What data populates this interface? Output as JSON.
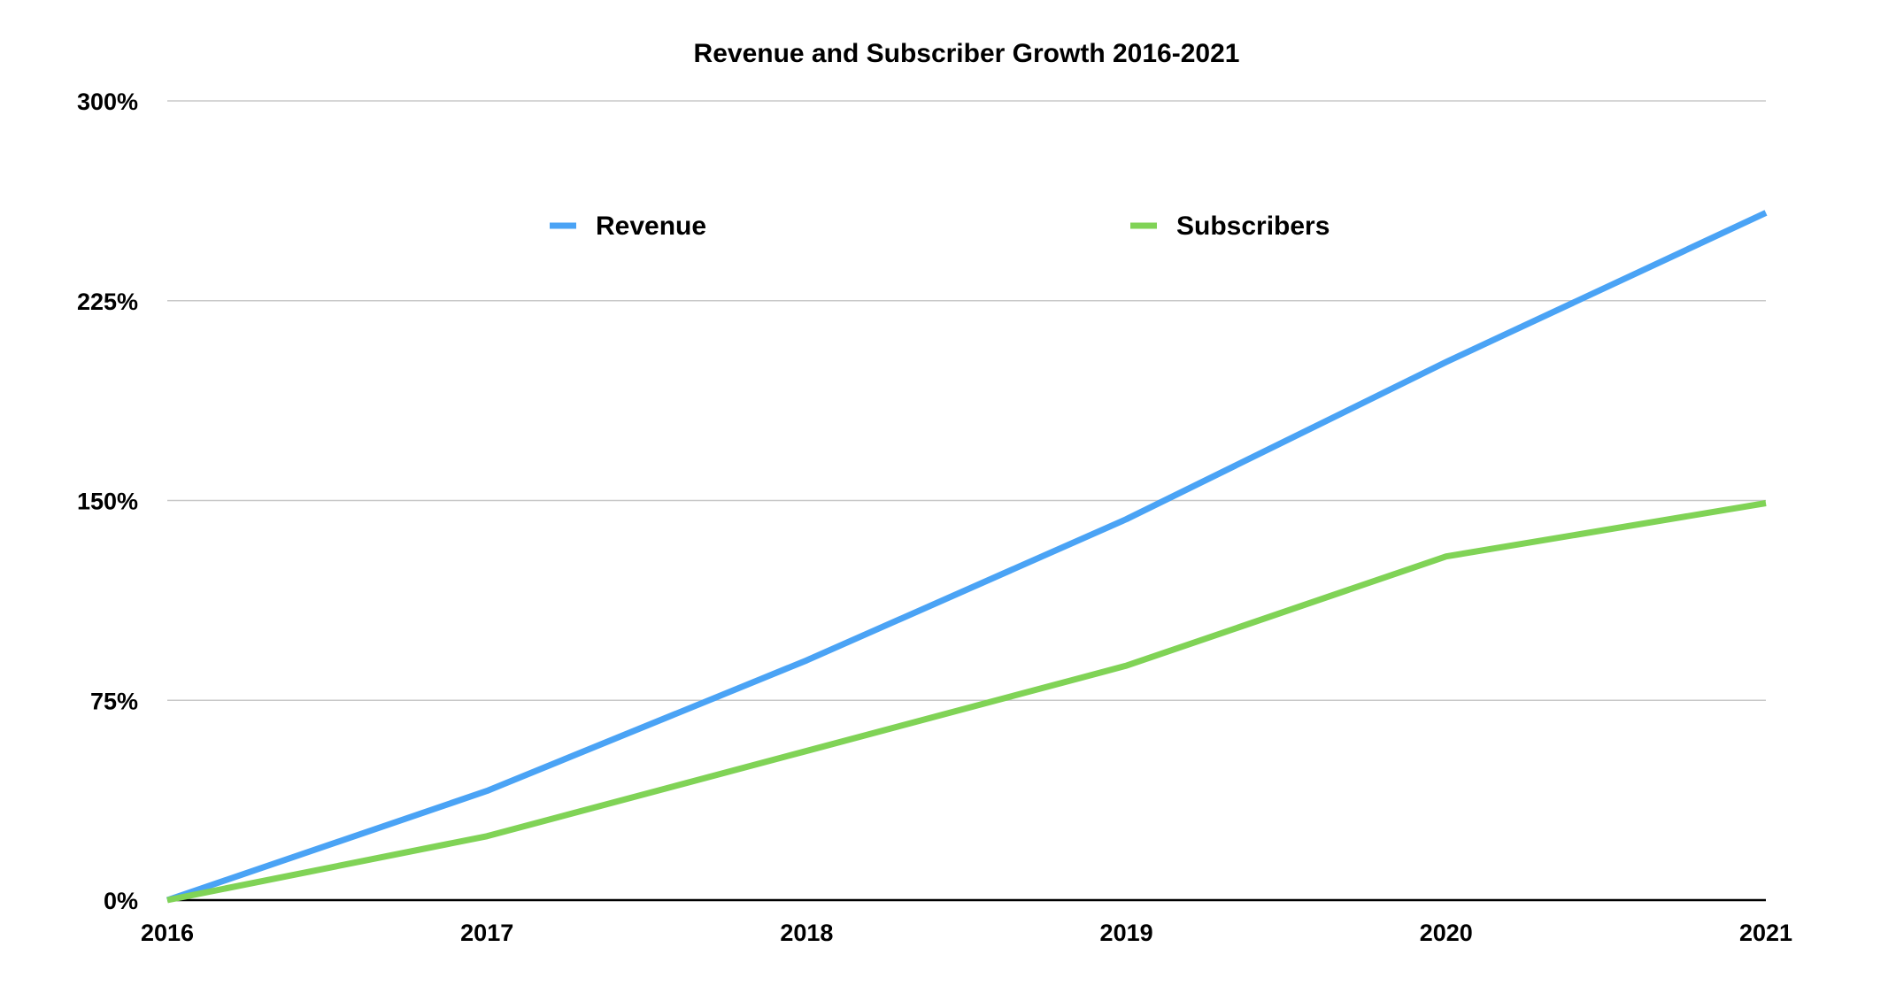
{
  "chart_data": {
    "type": "line",
    "title": "Revenue and Subscriber Growth 2016-2021",
    "xlabel": "",
    "ylabel": "",
    "categories": [
      "2016",
      "2017",
      "2018",
      "2019",
      "2020",
      "2021"
    ],
    "ylim": [
      0,
      300
    ],
    "yticks": [
      "0%",
      "75%",
      "150%",
      "225%",
      "300%"
    ],
    "ytick_values": [
      0,
      75,
      150,
      225,
      300
    ],
    "grid": true,
    "legend_position": "top",
    "series": [
      {
        "name": "Revenue",
        "color": "#4AA3F5",
        "values": [
          0,
          41,
          90,
          143,
          202,
          258
        ]
      },
      {
        "name": "Subscribers",
        "color": "#80D356",
        "values": [
          0,
          24,
          56,
          88,
          129,
          149
        ]
      }
    ]
  }
}
